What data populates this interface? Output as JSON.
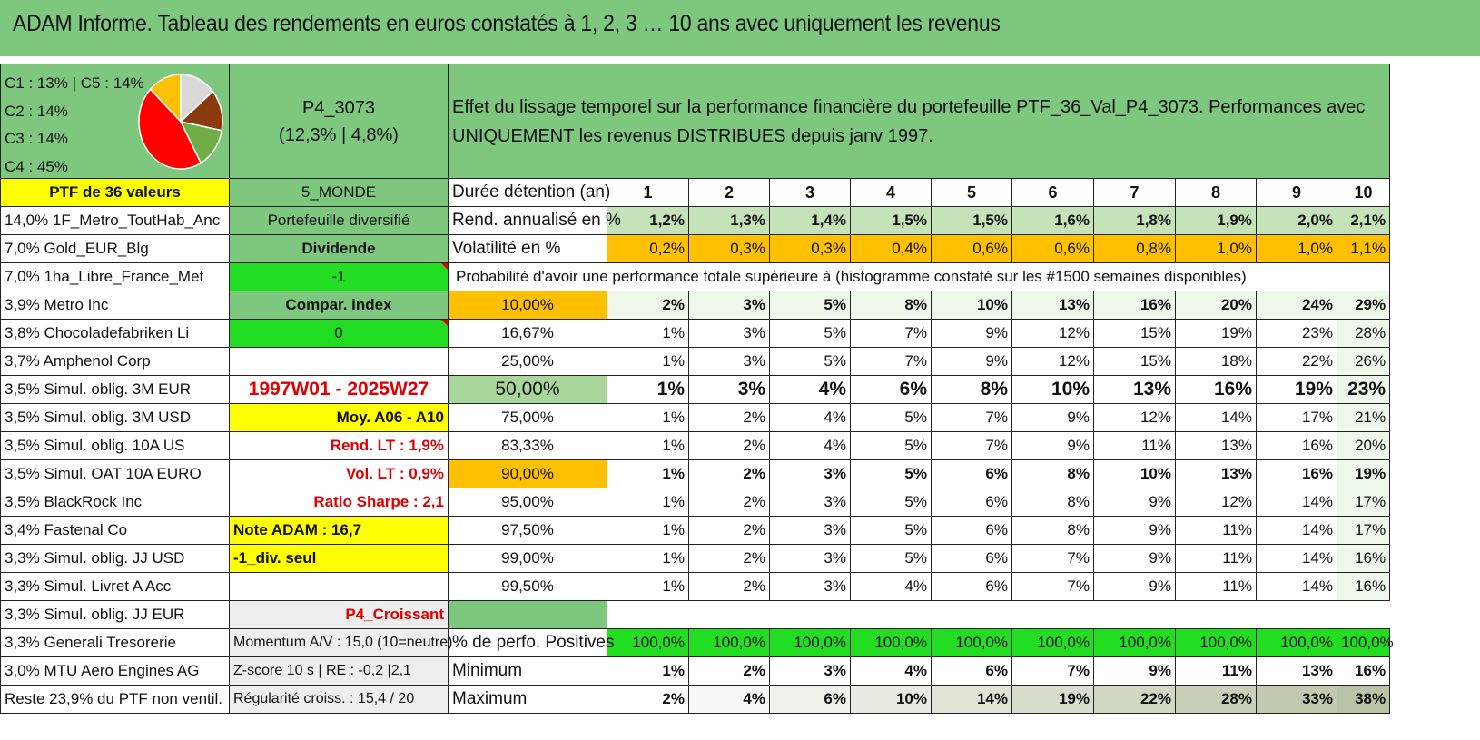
{
  "title": "ADAM Informe. Tableau des rendements en euros constatés à 1, 2, 3 … 10 ans avec uniquement les revenus",
  "allocation": {
    "labels": [
      "C1 : 13% | C5 : 14%",
      "C2 : 14%",
      "C3 : 14%",
      "C4 : 45%"
    ],
    "pie_slices": [
      {
        "name": "C1",
        "value": 13,
        "color": "#ffc000"
      },
      {
        "name": "C5",
        "value": 14,
        "color": "#d9d9d9"
      },
      {
        "name": "C2",
        "value": 14,
        "color": "#8b3a0f"
      },
      {
        "name": "C3",
        "value": 14,
        "color": "#70ad47"
      },
      {
        "name": "C4",
        "value": 45,
        "color": "#ff0000"
      }
    ]
  },
  "portfolio": {
    "code": "P4_3073",
    "stats": "(12,3% | 4,8%)",
    "description": "Effet du lissage temporel sur la performance financière du portefeuille PTF_36_Val_P4_3073. Performances avec UNIQUEMENT les revenus DISTRIBUES depuis janv 1997.",
    "size_label": "PTF de 36 valeurs",
    "zone": "5_MONDE"
  },
  "holdings": [
    "14,0% 1F_Metro_ToutHab_Anc",
    "7,0% Gold_EUR_Blg",
    "7,0% 1ha_Libre_France_Met",
    "3,9% Metro Inc",
    "3,8% Chocoladefabriken Li",
    "3,7% Amphenol Corp",
    "3,5% Simul. oblig. 3M EUR",
    "3,5% Simul. oblig. 3M USD",
    "3,5% Simul. oblig. 10A US",
    "3,5% Simul. OAT 10A EURO",
    "3,5% BlackRock Inc",
    "3,4% Fastenal Co",
    "3,3% Simul. oblig. JJ USD",
    "3,3% Simul. Livret A Acc",
    "3,3% Simul. oblig. JJ EUR",
    "3,3% Generali Tresorerie",
    "3,0% MTU Aero Engines AG",
    "Reste 23,9% du PTF non ventil."
  ],
  "info": {
    "type": "Portefeuille diversifié",
    "income": "Dividende",
    "minus_one": "-1",
    "compar": "Compar. index",
    "zero": "0",
    "period": "1997W01 - 2025W27",
    "moy": "Moy. A06 - A10",
    "rend_lt": "Rend. LT : 1,9%",
    "vol_lt": "Vol. LT : 0,9%",
    "sharpe": "Ratio Sharpe : 2,1",
    "note": "Note ADAM : 16,7",
    "div": "-1_div. seul",
    "croissant": "P4_Croissant",
    "momentum": "Momentum A/V : 15,0 (10=neutre)",
    "zscore": "Z-score 10 s | RE : -0,2 |2,1",
    "regularite": "Régularité croiss. : 15,4 / 20"
  },
  "duration": {
    "label": "Durée détention (an)",
    "years": [
      "1",
      "2",
      "3",
      "4",
      "5",
      "6",
      "7",
      "8",
      "9",
      "10"
    ]
  },
  "rendement": {
    "label": "Rend. annualisé en %",
    "values": [
      "1,2%",
      "1,3%",
      "1,4%",
      "1,5%",
      "1,5%",
      "1,6%",
      "1,8%",
      "1,9%",
      "2,0%",
      "2,1%"
    ]
  },
  "volatilite": {
    "label": "Volatilité en %",
    "values": [
      "0,2%",
      "0,3%",
      "0,3%",
      "0,4%",
      "0,6%",
      "0,6%",
      "0,8%",
      "1,0%",
      "1,0%",
      "1,1%"
    ]
  },
  "probability_header": "Probabilité d'avoir une performance totale supérieure à (histogramme constaté sur les #1500 semaines disponibles)",
  "probabilities": [
    {
      "p": "10,00%",
      "values": [
        "2%",
        "3%",
        "5%",
        "8%",
        "10%",
        "13%",
        "16%",
        "20%",
        "24%",
        "29%"
      ]
    },
    {
      "p": "16,67%",
      "values": [
        "1%",
        "3%",
        "5%",
        "7%",
        "9%",
        "12%",
        "15%",
        "19%",
        "23%",
        "28%"
      ]
    },
    {
      "p": "25,00%",
      "values": [
        "1%",
        "3%",
        "5%",
        "7%",
        "9%",
        "12%",
        "15%",
        "18%",
        "22%",
        "26%"
      ]
    },
    {
      "p": "50,00%",
      "values": [
        "1%",
        "3%",
        "4%",
        "6%",
        "8%",
        "10%",
        "13%",
        "16%",
        "19%",
        "23%"
      ]
    },
    {
      "p": "75,00%",
      "values": [
        "1%",
        "2%",
        "4%",
        "5%",
        "7%",
        "9%",
        "12%",
        "14%",
        "17%",
        "21%"
      ]
    },
    {
      "p": "83,33%",
      "values": [
        "1%",
        "2%",
        "4%",
        "5%",
        "7%",
        "9%",
        "11%",
        "13%",
        "16%",
        "20%"
      ]
    },
    {
      "p": "90,00%",
      "values": [
        "1%",
        "2%",
        "3%",
        "5%",
        "6%",
        "8%",
        "10%",
        "13%",
        "16%",
        "19%"
      ]
    },
    {
      "p": "95,00%",
      "values": [
        "1%",
        "2%",
        "3%",
        "5%",
        "6%",
        "8%",
        "9%",
        "12%",
        "14%",
        "17%"
      ]
    },
    {
      "p": "97,50%",
      "values": [
        "1%",
        "2%",
        "3%",
        "5%",
        "6%",
        "8%",
        "9%",
        "11%",
        "14%",
        "17%"
      ]
    },
    {
      "p": "99,00%",
      "values": [
        "1%",
        "2%",
        "3%",
        "5%",
        "6%",
        "7%",
        "9%",
        "11%",
        "14%",
        "16%"
      ]
    },
    {
      "p": "99,50%",
      "values": [
        "1%",
        "2%",
        "3%",
        "4%",
        "6%",
        "7%",
        "9%",
        "11%",
        "14%",
        "16%"
      ]
    }
  ],
  "positives": {
    "label": "% de perfo. Positives",
    "values": [
      "100,0%",
      "100,0%",
      "100,0%",
      "100,0%",
      "100,0%",
      "100,0%",
      "100,0%",
      "100,0%",
      "100,0%",
      "100,0%"
    ]
  },
  "minimum": {
    "label": "Minimum",
    "values": [
      "1%",
      "2%",
      "3%",
      "4%",
      "6%",
      "7%",
      "9%",
      "11%",
      "13%",
      "16%"
    ]
  },
  "maximum": {
    "label": "Maximum",
    "values": [
      "2%",
      "4%",
      "6%",
      "10%",
      "14%",
      "19%",
      "22%",
      "28%",
      "33%",
      "38%"
    ]
  }
}
